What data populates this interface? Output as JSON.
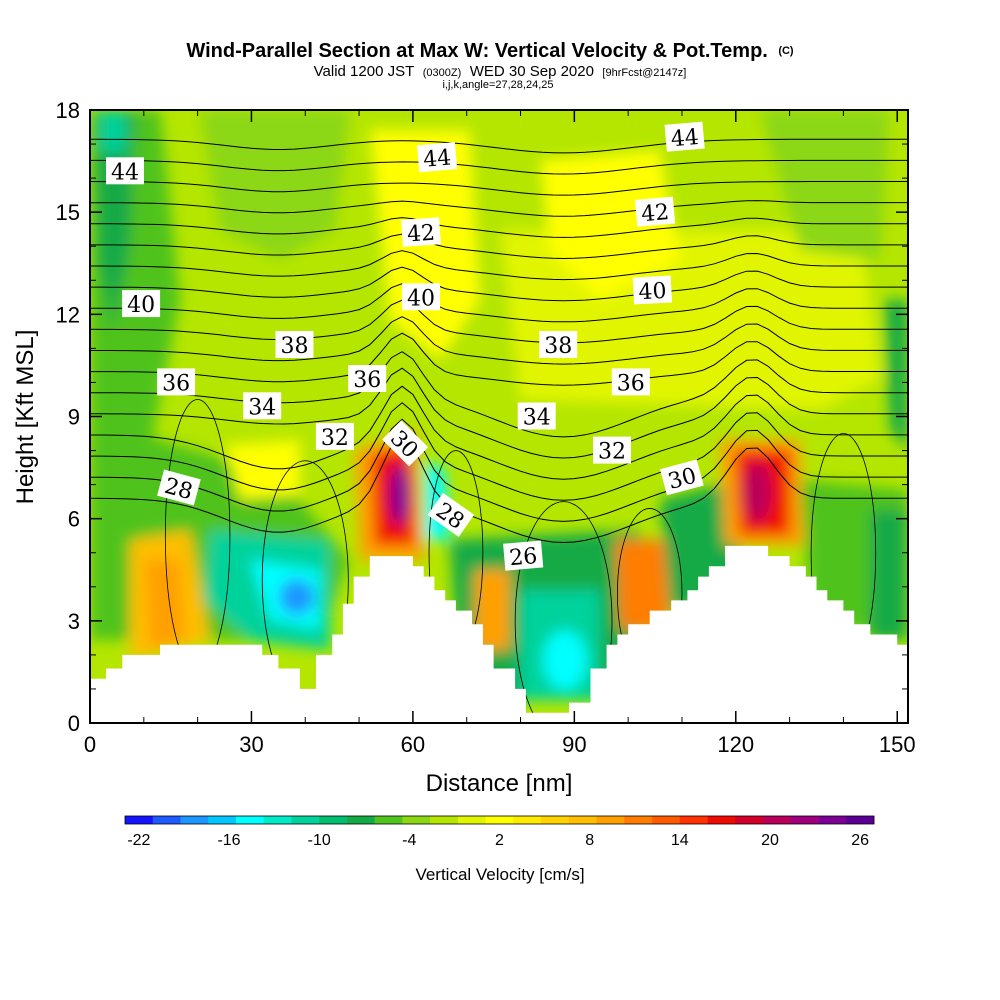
{
  "chart_data": {
    "type": "heatmap",
    "title": "Wind-Parallel Section at Max W: Vertical Velocity & Pot.Temp.",
    "title_suffix": "(C)",
    "subtitle": {
      "prefix": "Valid 1200 JST",
      "utc": "(0300Z)",
      "date": "WED 30 Sep 2020",
      "forecast": "[9hrFcst@2147z]"
    },
    "indices": "i,j,k,angle=27,28,24,25",
    "xlabel": "Distance [nm]",
    "ylabel": "Height [Kft MSL]",
    "xlim": [
      0,
      152
    ],
    "ylim": [
      0,
      18
    ],
    "x_ticks": [
      "0",
      "30",
      "60",
      "90",
      "120",
      "150"
    ],
    "y_ticks": [
      "0",
      "3",
      "6",
      "9",
      "12",
      "15",
      "18"
    ],
    "colorbar": {
      "title": "Vertical Velocity [cm/s]",
      "labels": [
        "-22",
        "-16",
        "-10",
        "-4",
        "2",
        "8",
        "14",
        "20",
        "26"
      ],
      "colors": [
        "#1414ff",
        "#1e5aff",
        "#1e96ff",
        "#00c8ff",
        "#00ffff",
        "#00ebc8",
        "#00d29b",
        "#00be6e",
        "#14aa46",
        "#50c31e",
        "#8cd714",
        "#b4e600",
        "#e1f500",
        "#ffff00",
        "#ffeb00",
        "#ffd200",
        "#ffbe00",
        "#ffa000",
        "#ff7d00",
        "#ff5a00",
        "#ff3200",
        "#f00a00",
        "#d20028",
        "#b9005a",
        "#a0007d",
        "#7d0096",
        "#5a0096"
      ]
    },
    "theta_contour_labels": [
      {
        "text": "44",
        "x": 6.5,
        "y": 16.2,
        "rot": 0
      },
      {
        "text": "44",
        "x": 64.5,
        "y": 16.6,
        "rot": -5
      },
      {
        "text": "44",
        "x": 110.5,
        "y": 17.2,
        "rot": -5
      },
      {
        "text": "42",
        "x": 61.5,
        "y": 14.4,
        "rot": -4
      },
      {
        "text": "42",
        "x": 105,
        "y": 15.0,
        "rot": -5
      },
      {
        "text": "40",
        "x": 9.5,
        "y": 12.3,
        "rot": 0
      },
      {
        "text": "40",
        "x": 61.5,
        "y": 12.5,
        "rot": 0
      },
      {
        "text": "40",
        "x": 104.5,
        "y": 12.7,
        "rot": -3
      },
      {
        "text": "38",
        "x": 38,
        "y": 11.1,
        "rot": 0
      },
      {
        "text": "38",
        "x": 87,
        "y": 11.1,
        "rot": 0
      },
      {
        "text": "36",
        "x": 16,
        "y": 10.0,
        "rot": 0
      },
      {
        "text": "36",
        "x": 51.5,
        "y": 10.1,
        "rot": 0
      },
      {
        "text": "36",
        "x": 100.5,
        "y": 10.0,
        "rot": 0
      },
      {
        "text": "34",
        "x": 32,
        "y": 9.3,
        "rot": 0
      },
      {
        "text": "34",
        "x": 83,
        "y": 9.0,
        "rot": 0
      },
      {
        "text": "32",
        "x": 45.5,
        "y": 8.4,
        "rot": 0
      },
      {
        "text": "32",
        "x": 97,
        "y": 8.0,
        "rot": 0
      },
      {
        "text": "30",
        "x": 58.5,
        "y": 8.2,
        "rot": 45
      },
      {
        "text": "30",
        "x": 110,
        "y": 7.2,
        "rot": -15
      },
      {
        "text": "28",
        "x": 16.5,
        "y": 6.9,
        "rot": 15
      },
      {
        "text": "28",
        "x": 67,
        "y": 6.1,
        "rot": 35
      },
      {
        "text": "26",
        "x": 80.5,
        "y": 4.9,
        "rot": -5
      }
    ]
  }
}
